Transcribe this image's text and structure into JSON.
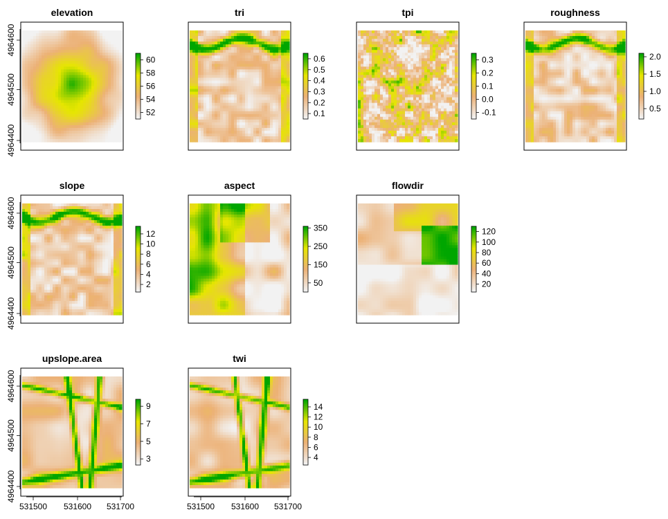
{
  "figure": {
    "x_tick_labels": [
      "531500",
      "531600",
      "531700"
    ],
    "y_tick_labels": [
      "4964400",
      "4964500",
      "4964600"
    ]
  },
  "chart_data": [
    {
      "type": "heatmap",
      "title": "elevation",
      "colormap": "terrain",
      "pattern": "elevation",
      "legend_ticks": [
        "52",
        "54",
        "56",
        "58",
        "60"
      ],
      "legend_range": [
        51,
        61
      ],
      "show_y_axis": true,
      "show_x_axis": false
    },
    {
      "type": "heatmap",
      "title": "tri",
      "colormap": "terrain",
      "pattern": "ridge",
      "legend_ticks": [
        "0.1",
        "0.2",
        "0.3",
        "0.4",
        "0.5",
        "0.6"
      ],
      "legend_range": [
        0.05,
        0.65
      ],
      "show_y_axis": false,
      "show_x_axis": false
    },
    {
      "type": "heatmap",
      "title": "tpi",
      "colormap": "terrain",
      "pattern": "noise",
      "legend_ticks": [
        "-0.1",
        "0.0",
        "0.1",
        "0.2",
        "0.3"
      ],
      "legend_range": [
        -0.15,
        0.35
      ],
      "show_y_axis": false,
      "show_x_axis": false
    },
    {
      "type": "heatmap",
      "title": "roughness",
      "colormap": "terrain",
      "pattern": "ridge",
      "legend_ticks": [
        "0.5",
        "1.0",
        "1.5",
        "2.0"
      ],
      "legend_range": [
        0.2,
        2.1
      ],
      "show_y_axis": false,
      "show_x_axis": false
    },
    {
      "type": "heatmap",
      "title": "slope",
      "colormap": "terrain",
      "pattern": "ridge",
      "legend_ticks": [
        "2",
        "4",
        "6",
        "8",
        "10",
        "12"
      ],
      "legend_range": [
        0.5,
        13.5
      ],
      "show_y_axis": true,
      "show_x_axis": false
    },
    {
      "type": "heatmap",
      "title": "aspect",
      "colormap": "terrain",
      "pattern": "aspect",
      "legend_ticks": [
        "50",
        "150",
        "250",
        "350"
      ],
      "legend_range": [
        0,
        360
      ],
      "show_y_axis": false,
      "show_x_axis": false
    },
    {
      "type": "heatmap",
      "title": "flowdir",
      "colormap": "terrain",
      "pattern": "flowdir",
      "legend_ticks": [
        "20",
        "40",
        "60",
        "80",
        "100",
        "120"
      ],
      "legend_range": [
        5,
        130
      ],
      "show_y_axis": false,
      "show_x_axis": false
    },
    {
      "type": "heatmap",
      "title": "upslope.area",
      "colormap": "terrain",
      "pattern": "channels",
      "legend_ticks": [
        "3",
        "5",
        "7",
        "9"
      ],
      "legend_range": [
        2.3,
        9.8
      ],
      "show_y_axis": true,
      "show_x_axis": true
    },
    {
      "type": "heatmap",
      "title": "twi",
      "colormap": "terrain",
      "pattern": "channels",
      "legend_ticks": [
        "4",
        "6",
        "8",
        "10",
        "12",
        "14"
      ],
      "legend_range": [
        2.5,
        15.5
      ],
      "show_y_axis": false,
      "show_x_axis": true
    }
  ]
}
